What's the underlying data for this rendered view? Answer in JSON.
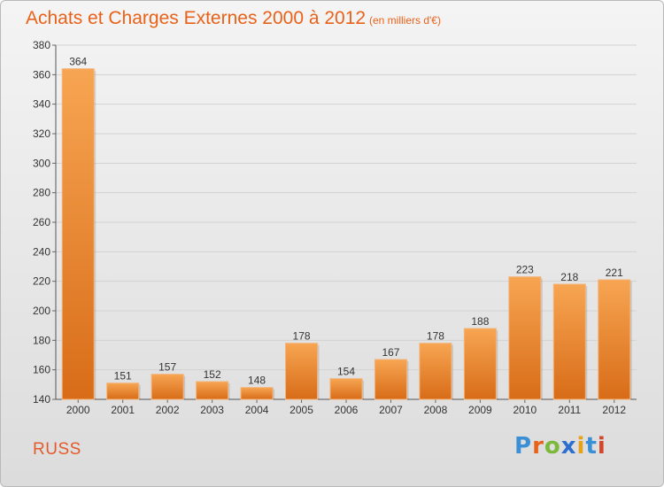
{
  "title": "Achats et Charges Externes 2000 à 2012",
  "subtitle": "(en milliers d'€)",
  "commune": "RUSS",
  "logo": {
    "letters": [
      "P",
      "r",
      "o",
      "x",
      "i",
      "t",
      "i"
    ],
    "colors": [
      "#3a8fd6",
      "#e8621a",
      "#7cb83a",
      "#2d6fcf",
      "#e8a21a",
      "#3a8fd6",
      "#d6452a"
    ]
  },
  "colors": {
    "bar_top": "#f7a552",
    "bar_bottom": "#d86c18",
    "title": "#e8621a",
    "commune": "#e55a2a"
  },
  "chart_data": {
    "type": "bar",
    "categories": [
      "2000",
      "2001",
      "2002",
      "2003",
      "2004",
      "2005",
      "2006",
      "2007",
      "2008",
      "2009",
      "2010",
      "2011",
      "2012"
    ],
    "values": [
      364,
      151,
      157,
      152,
      148,
      178,
      154,
      167,
      178,
      188,
      223,
      218,
      221
    ],
    "data_labels": [
      "364",
      "151",
      "157",
      "152",
      "148",
      "178",
      "154",
      "167",
      "178",
      "188",
      "223",
      "218",
      "221"
    ],
    "ylim": [
      140,
      380
    ],
    "yticks": [
      "140",
      "160",
      "180",
      "200",
      "220",
      "240",
      "260",
      "280",
      "300",
      "320",
      "340",
      "360",
      "380"
    ],
    "grid": true,
    "legend": "none"
  }
}
